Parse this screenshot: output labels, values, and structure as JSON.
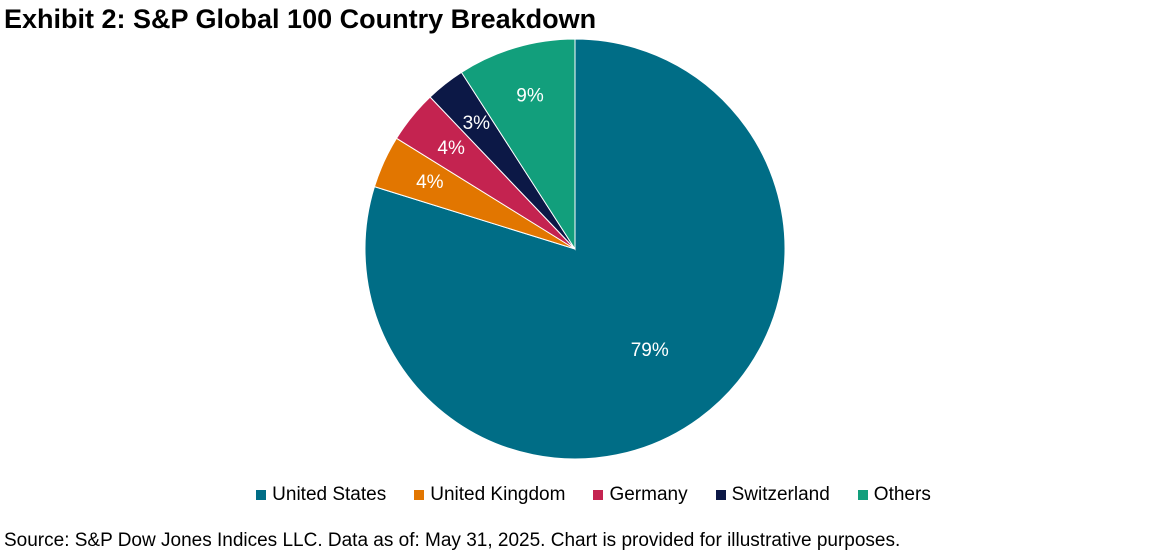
{
  "title": "Exhibit 2: S&P Global 100 Country Breakdown",
  "source": "Source: S&P Dow Jones Indices LLC. Data as of: May 31, 2025. Chart is provided for illustrative purposes.",
  "chart_data": {
    "type": "pie",
    "title": "Exhibit 2: S&P Global 100 Country Breakdown",
    "legend_position": "bottom",
    "slices": [
      {
        "name": "United States",
        "value": 79,
        "label": "79%",
        "color": "#006D86"
      },
      {
        "name": "United Kingdom",
        "value": 4,
        "label": "4%",
        "color": "#E27600"
      },
      {
        "name": "Germany",
        "value": 4,
        "label": "4%",
        "color": "#C42350"
      },
      {
        "name": "Switzerland",
        "value": 3,
        "label": "3%",
        "color": "#0C1846"
      },
      {
        "name": "Others",
        "value": 9,
        "label": "9%",
        "color": "#129F7C"
      }
    ]
  }
}
